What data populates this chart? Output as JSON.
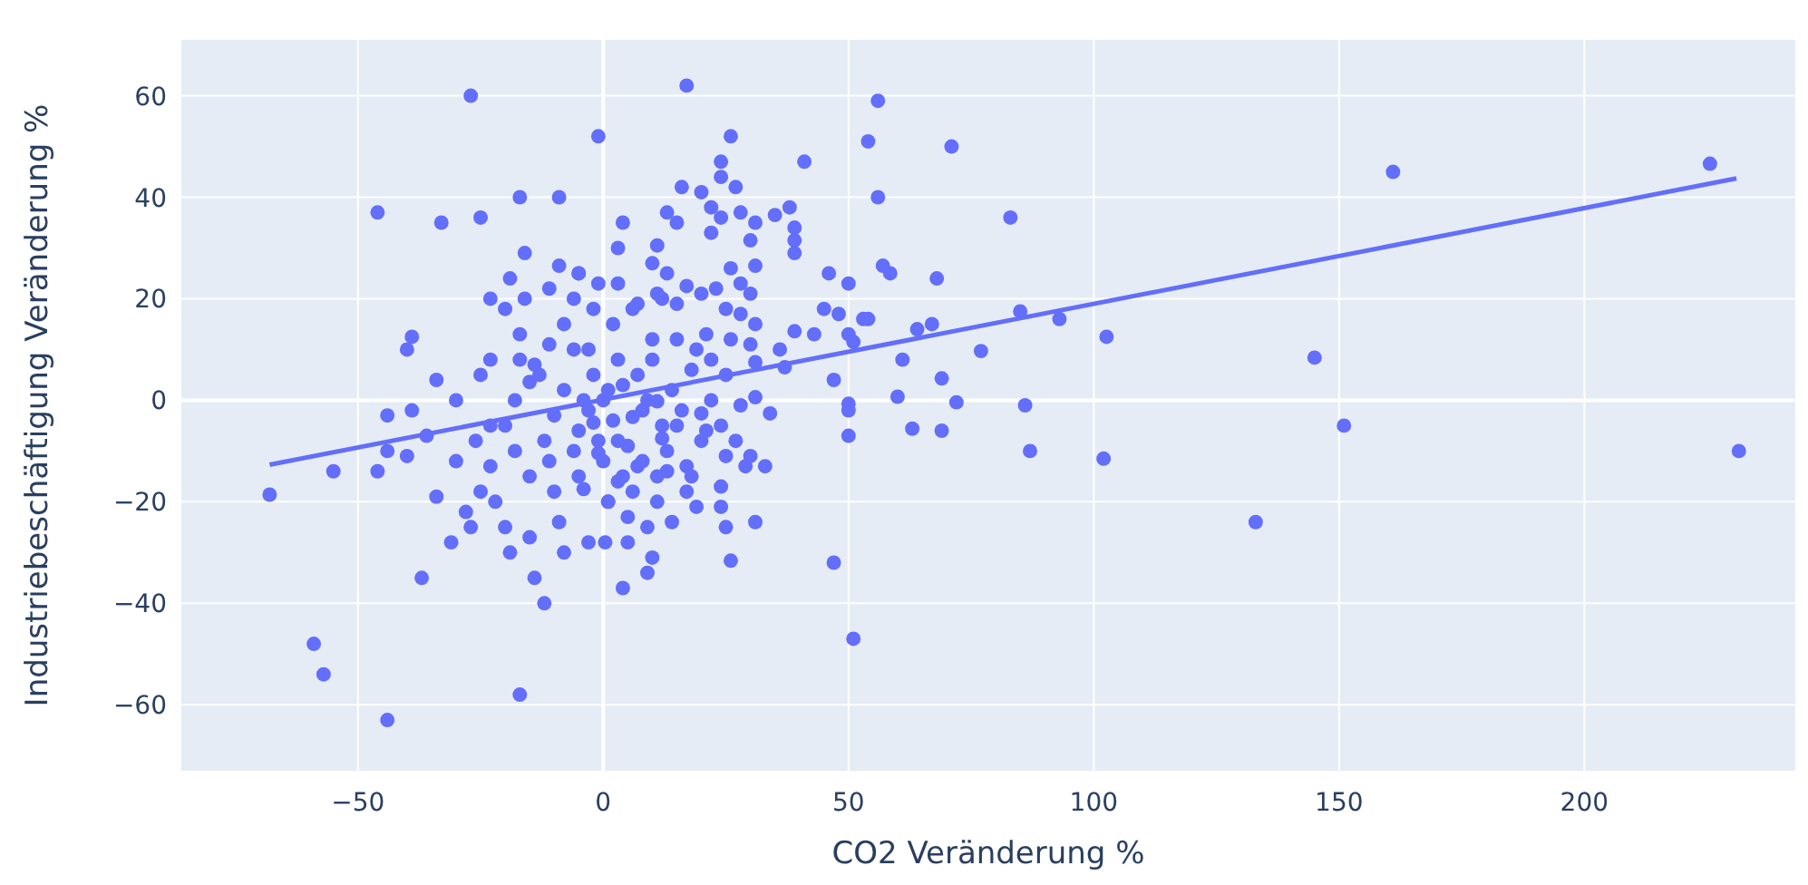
{
  "chart_data": {
    "type": "scatter",
    "xlabel": "CO2 Veränderung %",
    "ylabel": "Industriebeschäftigung Veränderung %",
    "xlim": [
      -86,
      243
    ],
    "ylim": [
      -73,
      71
    ],
    "xticks": [
      -50,
      0,
      50,
      100,
      150,
      200
    ],
    "yticks": [
      -60,
      -40,
      -20,
      0,
      20,
      40,
      60
    ],
    "grid": true,
    "marker": "circle",
    "series": [
      {
        "color": "#636efa",
        "x": [
          -68,
          -55,
          -46,
          -59,
          -57,
          -44,
          -37,
          -17,
          -31,
          -34,
          -40,
          -44,
          -44,
          -39,
          -36,
          -27,
          -46,
          -33,
          -25,
          -17,
          -9,
          -1,
          -39,
          -40,
          -16,
          -34,
          -30,
          -23,
          -19,
          -9,
          -5,
          -17,
          -11,
          -14,
          -23,
          -15,
          -6,
          17,
          26,
          24,
          24,
          27,
          16,
          20,
          41,
          54,
          56,
          56,
          13,
          15,
          22,
          24,
          28,
          31,
          35,
          38,
          39,
          39,
          39,
          22,
          30,
          4,
          3,
          11,
          10,
          26,
          31,
          28,
          46,
          50,
          57,
          13,
          17,
          20,
          23,
          30,
          -1,
          3,
          7,
          11,
          15,
          45,
          48,
          53,
          50,
          51,
          39,
          43,
          36,
          25,
          28,
          31,
          21,
          26,
          30,
          22,
          31,
          37,
          47,
          50,
          50,
          -5,
          50,
          47,
          51,
          26,
          31,
          34,
          33,
          28,
          31,
          25,
          27,
          30,
          29,
          24,
          24,
          25,
          17,
          18,
          17,
          19,
          14,
          11,
          9,
          10,
          9,
          4,
          0.4,
          5,
          5,
          1,
          -4,
          13,
          7,
          3,
          20,
          21,
          15,
          12,
          -1,
          3,
          -2,
          6,
          11,
          71,
          83,
          58.5,
          68,
          85,
          93,
          102.6,
          64,
          67,
          54,
          61,
          77,
          69,
          60,
          72,
          86,
          63,
          69,
          87,
          102,
          133,
          145,
          151,
          161,
          225.6,
          231.5,
          -20,
          -18,
          -15,
          -12,
          -10,
          -8,
          -5,
          -3,
          0,
          2,
          4,
          5,
          7,
          8,
          10,
          12,
          14,
          15,
          18,
          20,
          22,
          25,
          -22,
          -25,
          -20,
          -15,
          -10,
          -5,
          0,
          -28,
          -23,
          -18,
          -13,
          -8,
          -3,
          2,
          6,
          10,
          -25,
          -20,
          -14,
          -12,
          -8,
          -3,
          1,
          6,
          -30,
          -27,
          3,
          -6,
          8,
          12,
          16,
          -16,
          -11,
          -2,
          4,
          9,
          -1,
          -19,
          -23,
          -17,
          -9,
          -26,
          -6,
          -4,
          1,
          13,
          19,
          24,
          11,
          -2,
          -11
        ],
        "values": [
          -18.6,
          -14,
          -14,
          -48,
          -54,
          -63,
          -35,
          -58,
          -28,
          -19,
          -11,
          -3,
          -10,
          -2,
          -7,
          60,
          37,
          35,
          36,
          40,
          40,
          52,
          12.5,
          10,
          29,
          4,
          0,
          20,
          24,
          26.5,
          25,
          13,
          11,
          7,
          8,
          3.6,
          10,
          62,
          52,
          47,
          44,
          42,
          42,
          41,
          47,
          51,
          59,
          40,
          37,
          35,
          38,
          36,
          37,
          35,
          36.5,
          38,
          34,
          31.5,
          29,
          33,
          31.5,
          35,
          30,
          30.5,
          27,
          26,
          26.5,
          23,
          25,
          23,
          26.5,
          25,
          22.5,
          21,
          22,
          21,
          23,
          23,
          19,
          21,
          19,
          18,
          17,
          16,
          13,
          11.5,
          13.6,
          13,
          10,
          18,
          17,
          15,
          13,
          12,
          11,
          8,
          7.5,
          6.5,
          4,
          -0.7,
          -2,
          25,
          -7,
          -32,
          -47,
          -31.6,
          -24,
          -2.6,
          -13,
          -1,
          0.6,
          -11,
          -8,
          -11,
          -13,
          -17,
          -21,
          -25,
          -13,
          -15,
          -18,
          -21,
          -24,
          -20,
          -25,
          -31,
          -34,
          -37,
          -28,
          -28,
          -23,
          -20,
          -17.5,
          -14,
          -13,
          -16,
          -2.6,
          -6,
          -5,
          -7.5,
          -10.4,
          -8,
          -4.4,
          -3.3,
          -0.2,
          50,
          36,
          25,
          24,
          17.5,
          16,
          12.5,
          14,
          15,
          16,
          8,
          9.7,
          4.3,
          0.7,
          -0.4,
          -1,
          -5.6,
          -6,
          -10,
          -11.5,
          -24,
          8.4,
          -5,
          45,
          46.6,
          -10,
          -5,
          -10,
          -15,
          -8,
          -3,
          2,
          -6,
          -2,
          0,
          -4,
          3,
          -9,
          5,
          -2,
          8,
          -5,
          2,
          12,
          6,
          -8,
          0,
          5,
          -20,
          -18,
          -25,
          -27,
          -18,
          -15,
          -12,
          -22,
          -13,
          0,
          5,
          15,
          10,
          15,
          18,
          12,
          5,
          18,
          -35,
          -40,
          -30,
          -28,
          -20,
          -18,
          -12,
          -25,
          8,
          20,
          -12,
          20,
          -2,
          20,
          22,
          5,
          -15,
          0,
          -8,
          -30,
          -5,
          8,
          -24,
          -8,
          -10,
          0,
          2,
          -10,
          10,
          -5,
          -15,
          18,
          -12
        ]
      },
      {
        "type": "line",
        "color": "#636efa",
        "marker": "none",
        "x": [
          -68,
          231
        ],
        "values": [
          -12.7,
          43.7
        ]
      }
    ]
  }
}
